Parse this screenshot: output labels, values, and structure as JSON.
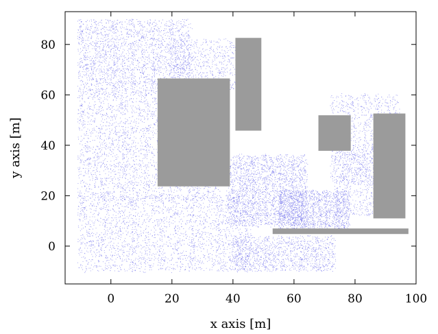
{
  "chart_data": {
    "type": "scatter",
    "title": "",
    "xlabel": "x axis [m]",
    "ylabel": "y axis [m]",
    "xlim": [
      -15,
      100
    ],
    "ylim": [
      -15,
      93
    ],
    "xticks": [
      0,
      20,
      40,
      60,
      80,
      100
    ],
    "yticks": [
      0,
      20,
      40,
      60,
      80
    ],
    "grid": false,
    "point_color": "#8f8ff0",
    "obstacle_color": "#9b9b9b",
    "obstacles": [
      {
        "x0": 15.3,
        "x1": 39.0,
        "y0": 23.7,
        "y1": 66.5
      },
      {
        "x0": 40.8,
        "x1": 49.3,
        "y0": 45.8,
        "y1": 82.6
      },
      {
        "x0": 68.0,
        "x1": 78.6,
        "y0": 37.8,
        "y1": 51.9
      },
      {
        "x0": 86.0,
        "x1": 96.5,
        "y0": 11.0,
        "y1": 52.6
      },
      {
        "x0": 53.0,
        "x1": 97.5,
        "y0": 4.8,
        "y1": 7.0
      }
    ],
    "point_clusters": [
      {
        "x": [
          -11,
          35
        ],
        "y": [
          18,
          60
        ],
        "n": 5200
      },
      {
        "x": [
          -11,
          45
        ],
        "y": [
          -10,
          20
        ],
        "n": 4200
      },
      {
        "x": [
          -11,
          26
        ],
        "y": [
          60,
          90
        ],
        "n": 2600
      },
      {
        "x": [
          20,
          43
        ],
        "y": [
          62,
          82
        ],
        "n": 700
      },
      {
        "x": [
          38,
          64
        ],
        "y": [
          8,
          36
        ],
        "n": 2300
      },
      {
        "x": [
          55,
          78
        ],
        "y": [
          6,
          22
        ],
        "n": 1500
      },
      {
        "x": [
          40,
          73
        ],
        "y": [
          -10,
          4
        ],
        "n": 1200
      },
      {
        "x": [
          72,
          95
        ],
        "y": [
          25,
          60
        ],
        "n": 1100
      },
      {
        "x": [
          73,
          86
        ],
        "y": [
          12,
          40
        ],
        "n": 500
      }
    ]
  }
}
